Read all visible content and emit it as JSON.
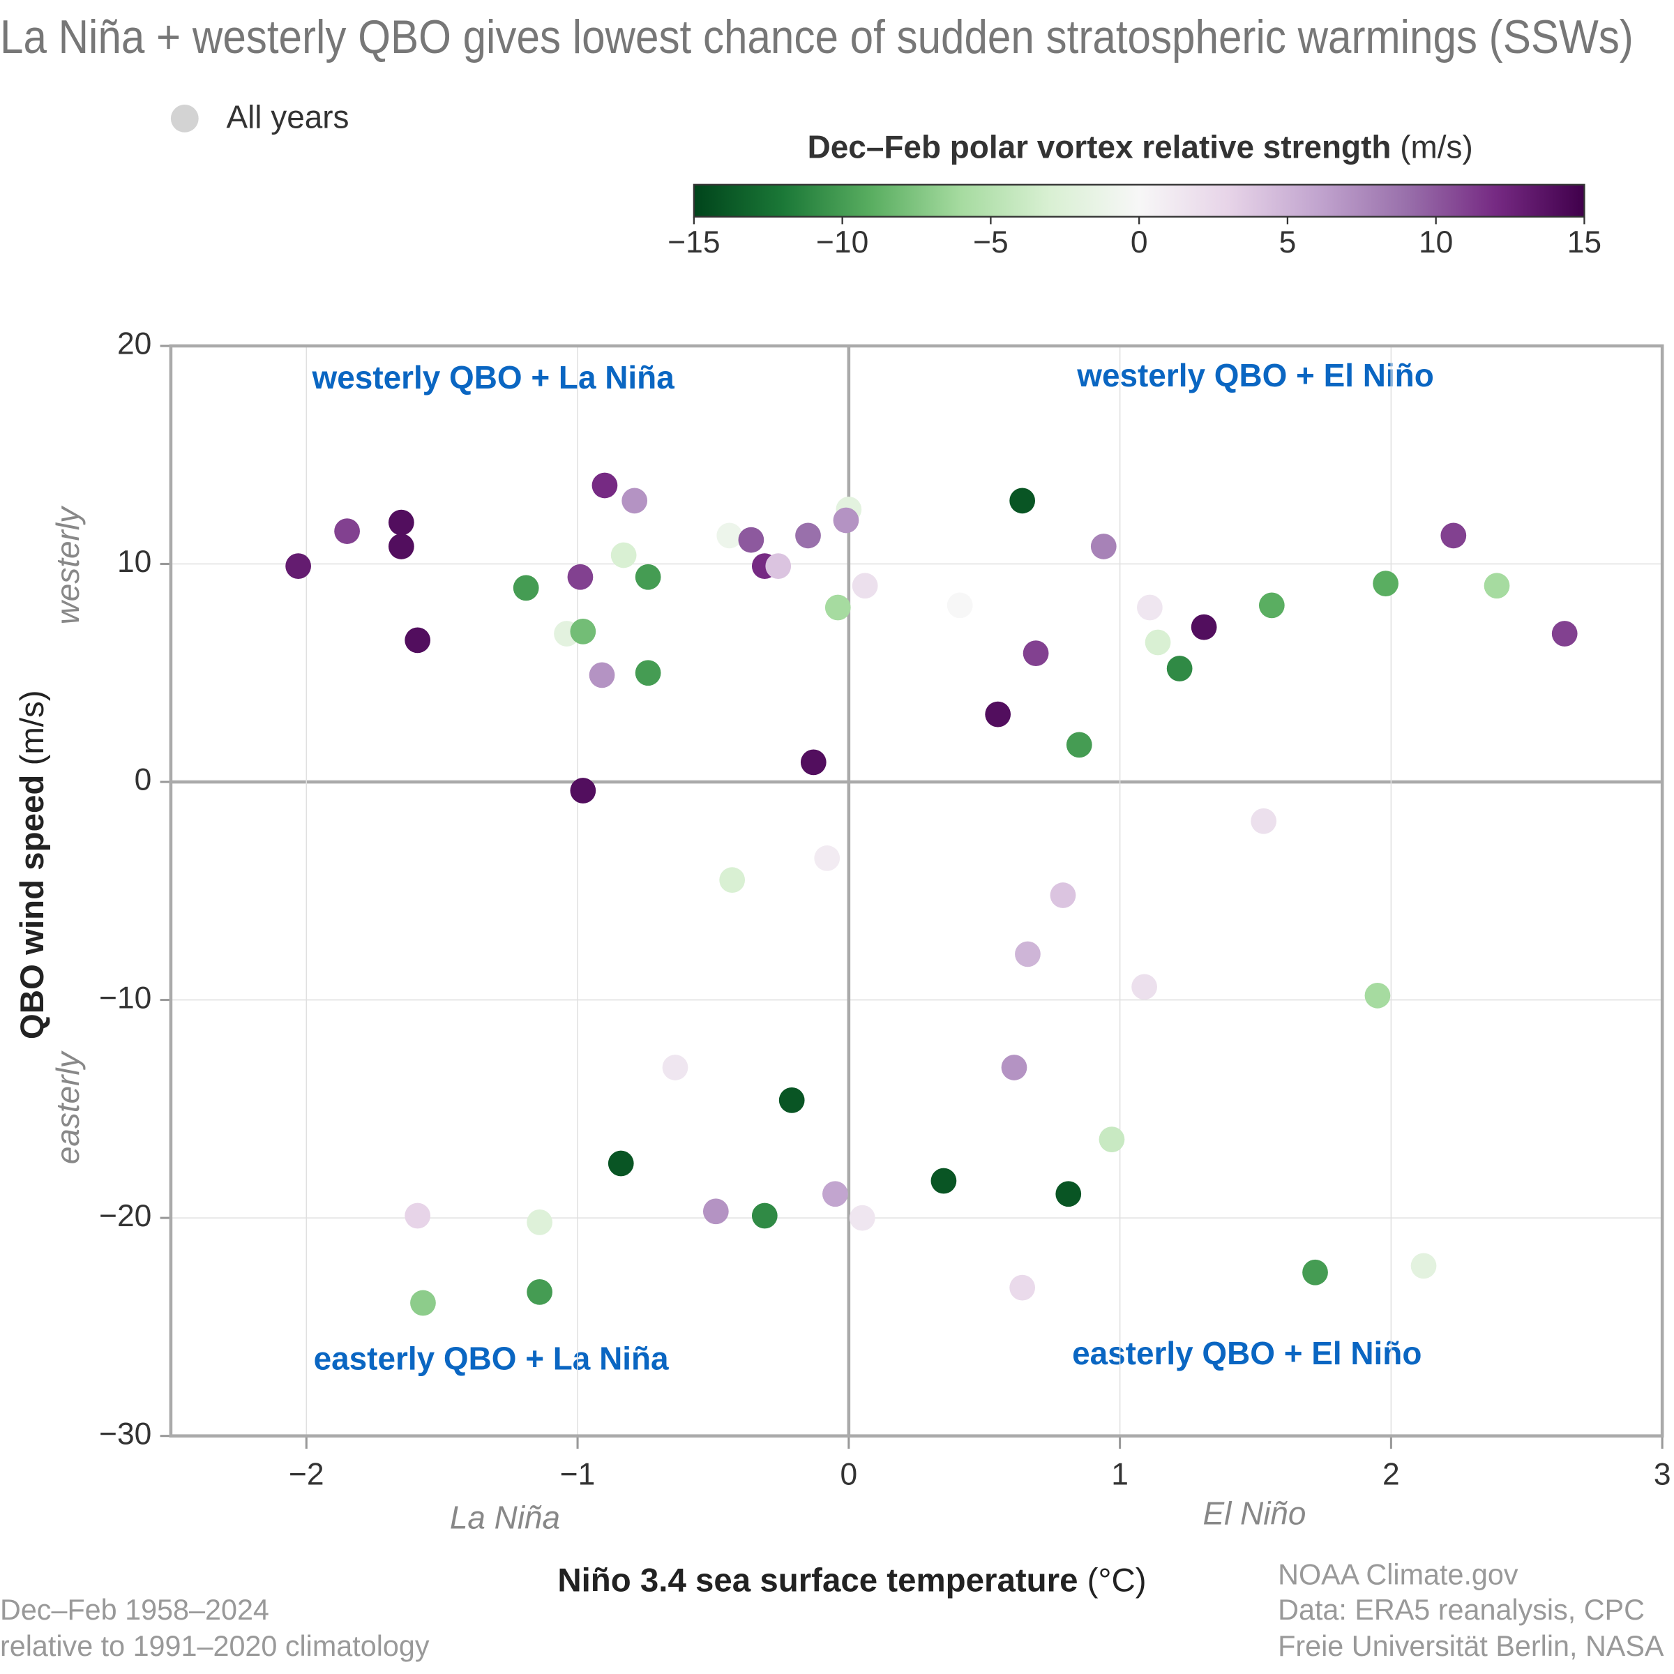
{
  "chart_data": {
    "type": "scatter",
    "title": "La Niña + westerly QBO gives lowest chance of sudden stratospheric warmings (SSWs)",
    "xlabel": "Niño 3.4 sea surface temperature",
    "xlabel_unit": "(°C)",
    "ylabel": "QBO wind speed",
    "ylabel_unit": "(m/s)",
    "colorbar_label": "Dec–Feb polar vortex relative strength",
    "colorbar_unit": "(m/s)",
    "clim": [
      -15,
      15
    ],
    "cticks": [
      {
        "value": -15,
        "label": "−15"
      },
      {
        "value": -10,
        "label": "−10"
      },
      {
        "value": -5,
        "label": "−5"
      },
      0,
      5,
      10,
      15
    ],
    "colormap": [
      "#00441b",
      "#1b7837",
      "#5aae61",
      "#a6dba0",
      "#d9f0d3",
      "#f7f7f7",
      "#e7d4e8",
      "#c2a5cf",
      "#9970ab",
      "#762a83",
      "#40004b"
    ],
    "xlim": [
      -2.5,
      3
    ],
    "xticks": [
      {
        "value": -2,
        "label": "−2"
      },
      {
        "value": -1,
        "label": "−1"
      },
      0,
      1,
      2,
      3
    ],
    "ylim": [
      -30,
      20
    ],
    "yticks": [
      {
        "value": -30,
        "label": "−30"
      },
      {
        "value": -20,
        "label": "−20"
      },
      {
        "value": -10,
        "label": "−10"
      },
      0,
      10,
      20
    ],
    "grid": true,
    "annotations": {
      "quadrant_top_left": "westerly QBO + La Niña",
      "quadrant_top_right": "westerly QBO + El Niño",
      "quadrant_bottom_left": "easterly QBO + La Niña",
      "quadrant_bottom_right": "easterly QBO + El Niño",
      "y_upper": "westerly",
      "y_lower": "easterly",
      "x_left": "La Niña",
      "x_right": "El Niño"
    },
    "footnote_left": [
      "Dec–Feb 1958–2024",
      "relative to 1991–2020 climatology"
    ],
    "footnote_right": [
      "NOAA Climate.gov",
      "Data: ERA5 reanalysis, CPC",
      "Freie Universität Berlin, NASA"
    ],
    "series": [
      {
        "name": "All years",
        "color": "#d3d3d3",
        "x": [
          -2.03,
          -1.85,
          -1.65,
          -1.65,
          -1.59,
          -1.19,
          -1.04,
          -0.98,
          -0.99,
          -0.9,
          -0.79,
          -0.83,
          -0.74,
          -0.91,
          -0.74,
          -0.13,
          -0.98,
          -0.44,
          -0.36,
          -0.31,
          -0.26,
          -0.15,
          0,
          -0.01,
          0.06,
          -0.04,
          0.64,
          0.94,
          0.41,
          0.69,
          0.55,
          0.85,
          1.11,
          1.14,
          1.31,
          1.22,
          1.56,
          1.98,
          2.23,
          2.39,
          2.64,
          1.53,
          -0.08,
          -0.43,
          0.79,
          0.66,
          1.09,
          1.95,
          -0.64,
          0.61,
          -0.21,
          0.97,
          -0.84,
          0.35,
          0.81,
          -0.05,
          -0.49,
          -0.31,
          0.05,
          -1.59,
          -1.14,
          -1.14,
          -1.57,
          1.72,
          2.12,
          0.64
        ],
        "values": [
          9.9,
          11.5,
          11.9,
          10.8,
          6.5,
          8.9,
          6.8,
          6.9,
          9.4,
          13.6,
          12.9,
          10.4,
          9.4,
          4.9,
          5.0,
          0.9,
          -0.4,
          11.3,
          11.1,
          9.9,
          9.9,
          11.3,
          12.5,
          12.0,
          9.0,
          8.0,
          12.9,
          10.8,
          8.1,
          5.9,
          3.1,
          1.7,
          8.0,
          6.4,
          7.1,
          5.2,
          8.1,
          9.1,
          11.3,
          9.0,
          6.8,
          -1.8,
          -3.5,
          -4.5,
          -5.2,
          -7.9,
          -9.4,
          -9.8,
          -13.1,
          -13.1,
          -14.6,
          -16.4,
          -17.5,
          -18.3,
          -18.9,
          -18.9,
          -19.7,
          -19.9,
          -20.0,
          -19.9,
          -20.2,
          -23.4,
          -23.9,
          -22.5,
          -22.2,
          -23.2
        ],
        "strength": [
          13,
          11,
          14,
          14,
          14,
          -10,
          -2,
          -8,
          11,
          12,
          7,
          -3,
          -10,
          7,
          -10,
          14,
          14,
          -1,
          10,
          12,
          4,
          9,
          -2,
          7,
          2,
          -6,
          -14,
          8,
          0,
          11,
          14,
          -10,
          1.5,
          -3,
          14,
          -11,
          -9,
          -9,
          11,
          -6,
          11,
          2,
          1,
          -3,
          4,
          5,
          2,
          -6,
          1.5,
          7,
          -14,
          -4,
          -14,
          -14,
          -14,
          6,
          7,
          -11,
          1.5,
          3,
          -2.5,
          -10,
          -7,
          -10,
          -2,
          2.5
        ]
      }
    ]
  }
}
